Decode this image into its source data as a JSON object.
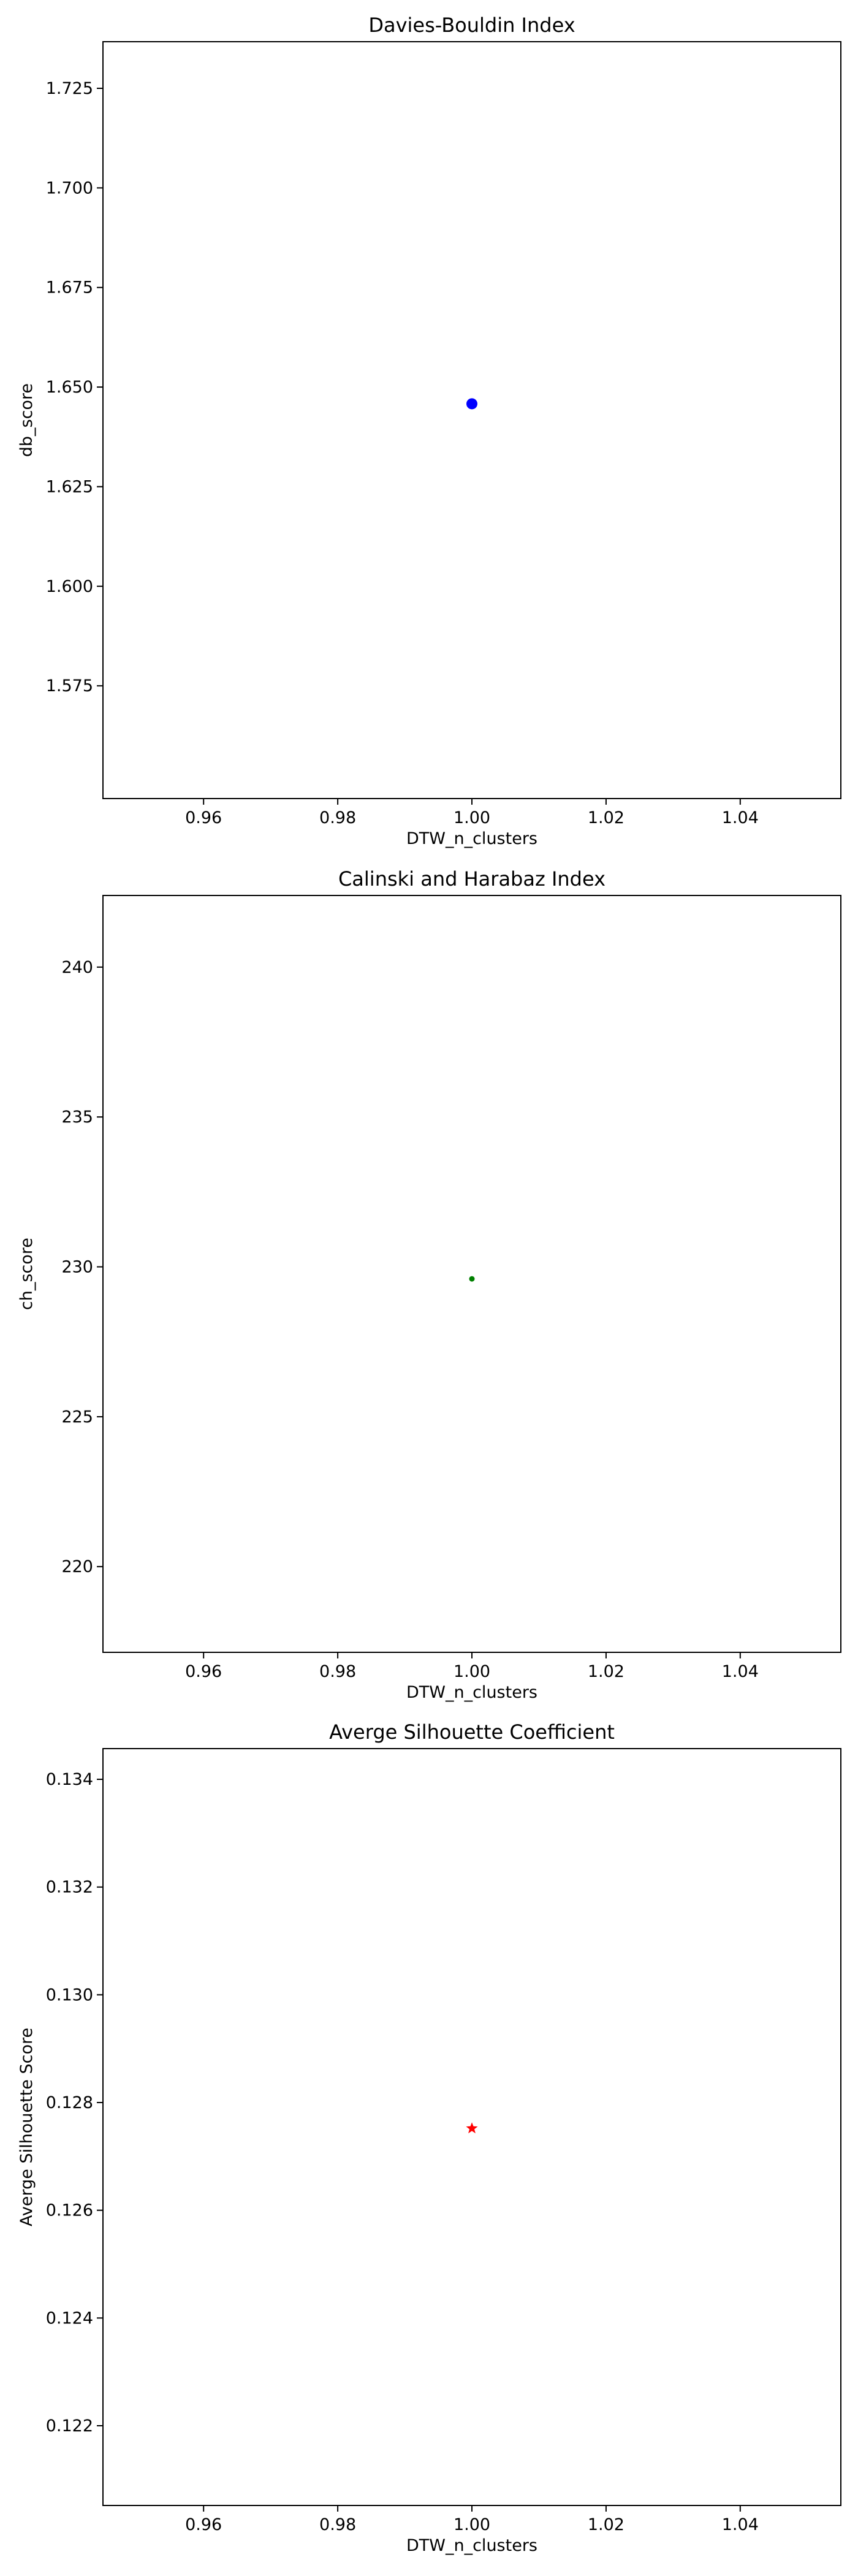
{
  "chart_data": [
    {
      "type": "scatter",
      "title": "Davies-Bouldin Index",
      "xlabel": "DTW_n_clusters",
      "ylabel": "db_score",
      "x": [
        1
      ],
      "y": [
        1.6458
      ],
      "xlim": [
        0.945,
        1.055
      ],
      "ylim": [
        1.5467,
        1.7367
      ],
      "xticks": [
        0.96,
        0.98,
        1.0,
        1.02,
        1.04
      ],
      "xtick_labels": [
        "0.96",
        "0.98",
        "1.00",
        "1.02",
        "1.04"
      ],
      "yticks": [
        1.575,
        1.6,
        1.625,
        1.65,
        1.675,
        1.7,
        1.725
      ],
      "ytick_labels": [
        "1.575",
        "1.600",
        "1.625",
        "1.650",
        "1.675",
        "1.700",
        "1.725"
      ],
      "marker": "circle",
      "color": "#0000ff",
      "grid": false
    },
    {
      "type": "scatter",
      "title": "Calinski and Harabaz Index",
      "xlabel": "DTW_n_clusters",
      "ylabel": "ch_score",
      "x": [
        1
      ],
      "y": [
        229.6
      ],
      "xlim": [
        0.945,
        1.055
      ],
      "ylim": [
        217.14,
        242.39
      ],
      "xticks": [
        0.96,
        0.98,
        1.0,
        1.02,
        1.04
      ],
      "xtick_labels": [
        "0.96",
        "0.98",
        "1.00",
        "1.02",
        "1.04"
      ],
      "yticks": [
        220,
        225,
        230,
        235,
        240
      ],
      "ytick_labels": [
        "220",
        "225",
        "230",
        "235",
        "240"
      ],
      "marker": "point",
      "color": "#008000",
      "grid": false
    },
    {
      "type": "scatter",
      "title": "Averge Silhouette Coefficient",
      "xlabel": "DTW_n_clusters",
      "ylabel": "Averge Silhouette Score",
      "x": [
        1
      ],
      "y": [
        0.12752
      ],
      "xlim": [
        0.945,
        1.055
      ],
      "ylim": [
        0.12052,
        0.13457
      ],
      "xticks": [
        0.96,
        0.98,
        1.0,
        1.02,
        1.04
      ],
      "xtick_labels": [
        "0.96",
        "0.98",
        "1.00",
        "1.02",
        "1.04"
      ],
      "yticks": [
        0.122,
        0.124,
        0.126,
        0.128,
        0.13,
        0.132,
        0.134
      ],
      "ytick_labels": [
        "0.122",
        "0.124",
        "0.126",
        "0.128",
        "0.130",
        "0.132",
        "0.134"
      ],
      "marker": "star",
      "color": "#ff0000",
      "grid": false
    }
  ]
}
